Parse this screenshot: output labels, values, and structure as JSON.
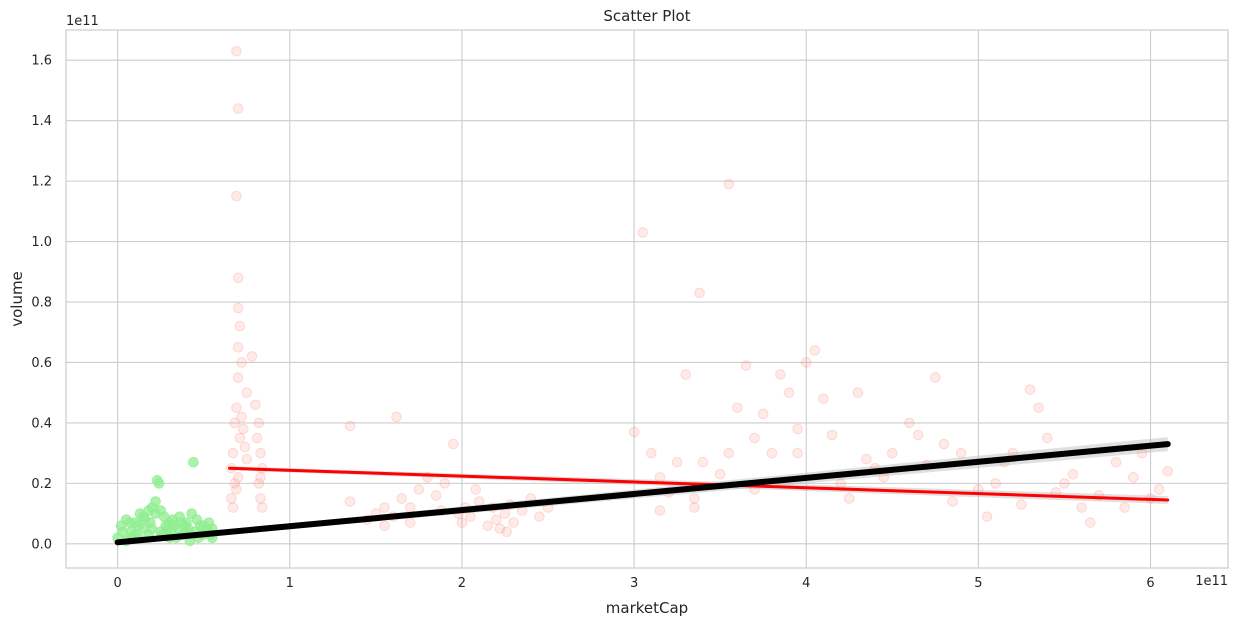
{
  "chart_data": {
    "type": "scatter",
    "title": "Scatter Plot",
    "xlabel": "marketCap",
    "ylabel": "volume",
    "x_offset_label": "1e11",
    "y_offset_label": "1e11",
    "xlim": [
      -0.3,
      6.45
    ],
    "ylim": [
      -0.08,
      1.7
    ],
    "x_ticks": [
      0,
      1,
      2,
      3,
      4,
      5,
      6
    ],
    "y_ticks": [
      0.0,
      0.2,
      0.4,
      0.6,
      0.8,
      1.0,
      1.2,
      1.4,
      1.6
    ],
    "x_tick_labels": [
      "0",
      "1",
      "2",
      "3",
      "4",
      "5",
      "6"
    ],
    "y_tick_labels": [
      "0.0",
      "0.2",
      "0.4",
      "0.6",
      "0.8",
      "1.0",
      "1.2",
      "1.4",
      "1.6"
    ],
    "grid": true,
    "colors": {
      "green_series": "#90ee90",
      "salmon_series": "#fa8072",
      "red_fit": "#ff0000",
      "black_fit": "#000000",
      "ci_band": "#bbbbbb"
    },
    "series": [
      {
        "color": "#90ee90",
        "opacity": 0.75,
        "points": [
          [
            0.0,
            0.02
          ],
          [
            0.02,
            0.06
          ],
          [
            0.05,
            0.01
          ],
          [
            0.08,
            0.04
          ],
          [
            0.1,
            0.07
          ],
          [
            0.12,
            0.02
          ],
          [
            0.15,
            0.09
          ],
          [
            0.18,
            0.03
          ],
          [
            0.2,
            0.05
          ],
          [
            0.22,
            0.1
          ],
          [
            0.25,
            0.04
          ],
          [
            0.28,
            0.06
          ],
          [
            0.3,
            0.02
          ],
          [
            0.32,
            0.08
          ],
          [
            0.35,
            0.05
          ],
          [
            0.38,
            0.03
          ],
          [
            0.4,
            0.07
          ],
          [
            0.42,
            0.01
          ],
          [
            0.45,
            0.04
          ],
          [
            0.48,
            0.06
          ],
          [
            0.5,
            0.03
          ],
          [
            0.52,
            0.05
          ],
          [
            0.55,
            0.02
          ],
          [
            0.05,
            0.08
          ],
          [
            0.1,
            0.03
          ],
          [
            0.15,
            0.05
          ],
          [
            0.2,
            0.12
          ],
          [
            0.22,
            0.14
          ],
          [
            0.23,
            0.21
          ],
          [
            0.24,
            0.2
          ],
          [
            0.25,
            0.11
          ],
          [
            0.27,
            0.09
          ],
          [
            0.3,
            0.07
          ],
          [
            0.33,
            0.06
          ],
          [
            0.36,
            0.09
          ],
          [
            0.4,
            0.04
          ],
          [
            0.43,
            0.1
          ],
          [
            0.44,
            0.27
          ],
          [
            0.46,
            0.08
          ],
          [
            0.5,
            0.06
          ],
          [
            0.53,
            0.07
          ],
          [
            0.55,
            0.05
          ],
          [
            0.08,
            0.02
          ],
          [
            0.12,
            0.06
          ],
          [
            0.16,
            0.08
          ],
          [
            0.18,
            0.11
          ],
          [
            0.26,
            0.03
          ],
          [
            0.29,
            0.05
          ],
          [
            0.34,
            0.02
          ],
          [
            0.37,
            0.07
          ],
          [
            0.41,
            0.05
          ],
          [
            0.47,
            0.02
          ],
          [
            0.51,
            0.04
          ],
          [
            0.54,
            0.03
          ],
          [
            0.03,
            0.04
          ],
          [
            0.07,
            0.07
          ],
          [
            0.13,
            0.1
          ],
          [
            0.19,
            0.07
          ],
          [
            0.31,
            0.04
          ],
          [
            0.39,
            0.06
          ]
        ]
      },
      {
        "color": "#fa8072",
        "opacity": 0.16,
        "points": [
          [
            0.66,
            0.25
          ],
          [
            0.67,
            0.3
          ],
          [
            0.68,
            0.4
          ],
          [
            0.69,
            0.45
          ],
          [
            0.7,
            0.55
          ],
          [
            0.7,
            0.65
          ],
          [
            0.71,
            0.72
          ],
          [
            0.7,
            0.78
          ],
          [
            0.72,
            0.6
          ],
          [
            0.73,
            0.38
          ],
          [
            0.74,
            0.32
          ],
          [
            0.75,
            0.28
          ],
          [
            0.68,
            0.2
          ],
          [
            0.69,
            0.18
          ],
          [
            0.7,
            0.22
          ],
          [
            0.71,
            0.35
          ],
          [
            0.72,
            0.42
          ],
          [
            0.7,
            0.88
          ],
          [
            0.69,
            1.15
          ],
          [
            0.7,
            1.44
          ],
          [
            0.69,
            1.63
          ],
          [
            0.66,
            0.15
          ],
          [
            0.67,
            0.12
          ],
          [
            0.75,
            0.5
          ],
          [
            0.78,
            0.62
          ],
          [
            0.8,
            0.46
          ],
          [
            0.82,
            0.4
          ],
          [
            0.83,
            0.3
          ],
          [
            0.84,
            0.25
          ],
          [
            0.82,
            0.2
          ],
          [
            0.83,
            0.15
          ],
          [
            0.84,
            0.12
          ],
          [
            0.81,
            0.35
          ],
          [
            0.83,
            0.22
          ],
          [
            1.35,
            0.39
          ],
          [
            1.35,
            0.14
          ],
          [
            1.45,
            0.08
          ],
          [
            1.5,
            0.1
          ],
          [
            1.55,
            0.06
          ],
          [
            1.6,
            0.09
          ],
          [
            1.62,
            0.42
          ],
          [
            1.65,
            0.15
          ],
          [
            1.7,
            0.12
          ],
          [
            1.75,
            0.18
          ],
          [
            1.8,
            0.22
          ],
          [
            1.85,
            0.16
          ],
          [
            1.9,
            0.2
          ],
          [
            1.95,
            0.33
          ],
          [
            1.98,
            0.1
          ],
          [
            2.0,
            0.07
          ],
          [
            2.02,
            0.12
          ],
          [
            2.05,
            0.09
          ],
          [
            2.1,
            0.14
          ],
          [
            2.15,
            0.06
          ],
          [
            2.2,
            0.08
          ],
          [
            2.22,
            0.05
          ],
          [
            2.25,
            0.1
          ],
          [
            2.28,
            0.13
          ],
          [
            2.3,
            0.07
          ],
          [
            2.35,
            0.11
          ],
          [
            2.4,
            0.15
          ],
          [
            2.45,
            0.09
          ],
          [
            2.5,
            0.12
          ],
          [
            1.55,
            0.12
          ],
          [
            1.7,
            0.07
          ],
          [
            1.88,
            0.11
          ],
          [
            2.08,
            0.18
          ],
          [
            2.18,
            0.12
          ],
          [
            2.26,
            0.04
          ],
          [
            3.05,
            1.03
          ],
          [
            3.0,
            0.37
          ],
          [
            3.1,
            0.3
          ],
          [
            3.15,
            0.22
          ],
          [
            3.2,
            0.17
          ],
          [
            3.25,
            0.27
          ],
          [
            3.3,
            0.56
          ],
          [
            3.35,
            0.15
          ],
          [
            3.38,
            0.83
          ],
          [
            3.4,
            0.27
          ],
          [
            3.5,
            0.23
          ],
          [
            3.55,
            1.19
          ],
          [
            3.6,
            0.45
          ],
          [
            3.65,
            0.59
          ],
          [
            3.7,
            0.35
          ],
          [
            3.75,
            0.43
          ],
          [
            3.8,
            0.3
          ],
          [
            3.85,
            0.56
          ],
          [
            3.9,
            0.5
          ],
          [
            3.95,
            0.3
          ],
          [
            4.0,
            0.6
          ],
          [
            4.05,
            0.64
          ],
          [
            4.1,
            0.48
          ],
          [
            4.15,
            0.36
          ],
          [
            4.2,
            0.2
          ],
          [
            4.3,
            0.5
          ],
          [
            4.4,
            0.25
          ],
          [
            4.5,
            0.3
          ],
          [
            4.6,
            0.4
          ],
          [
            4.7,
            0.26
          ],
          [
            4.75,
            0.55
          ],
          [
            4.8,
            0.33
          ],
          [
            4.9,
            0.3
          ],
          [
            5.0,
            0.18
          ],
          [
            5.1,
            0.2
          ],
          [
            5.2,
            0.3
          ],
          [
            5.3,
            0.51
          ],
          [
            5.35,
            0.45
          ],
          [
            5.4,
            0.35
          ],
          [
            5.5,
            0.2
          ],
          [
            5.6,
            0.12
          ],
          [
            5.7,
            0.16
          ],
          [
            5.8,
            0.27
          ],
          [
            5.9,
            0.22
          ],
          [
            6.0,
            0.15
          ],
          [
            6.1,
            0.24
          ],
          [
            3.15,
            0.11
          ],
          [
            3.35,
            0.12
          ],
          [
            3.7,
            0.18
          ],
          [
            4.25,
            0.15
          ],
          [
            4.45,
            0.22
          ],
          [
            4.85,
            0.14
          ],
          [
            5.05,
            0.09
          ],
          [
            5.25,
            0.13
          ],
          [
            5.45,
            0.17
          ],
          [
            5.65,
            0.07
          ],
          [
            5.85,
            0.12
          ],
          [
            6.05,
            0.18
          ],
          [
            3.55,
            0.3
          ],
          [
            3.95,
            0.38
          ],
          [
            4.35,
            0.28
          ],
          [
            4.65,
            0.36
          ],
          [
            5.15,
            0.27
          ],
          [
            5.55,
            0.23
          ],
          [
            5.95,
            0.3
          ]
        ]
      }
    ],
    "fit_lines": [
      {
        "color": "#ff0000",
        "width": 3,
        "x": [
          0.65,
          6.1
        ],
        "y": [
          0.25,
          0.145
        ]
      },
      {
        "color": "#000000",
        "width": 6,
        "x": [
          0.0,
          6.1
        ],
        "y": [
          0.005,
          0.33
        ]
      }
    ]
  }
}
